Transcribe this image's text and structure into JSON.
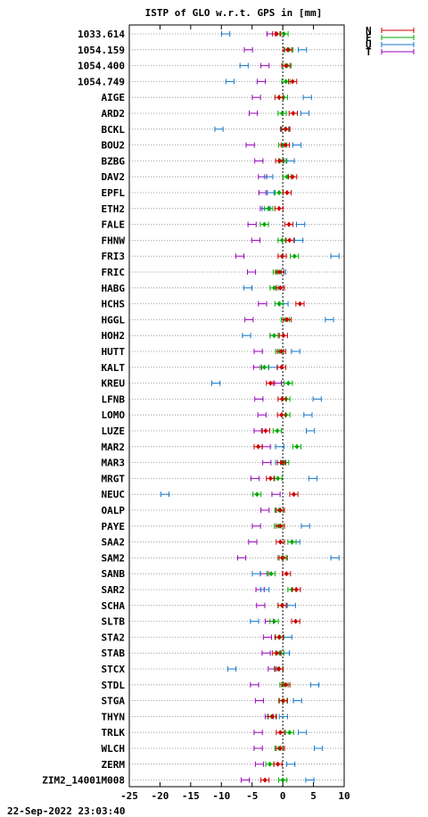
{
  "chart_data": {
    "type": "scatter",
    "title": "ISTP of GLO w.r.t. GPS in [mm]",
    "xlim": [
      -25,
      10
    ],
    "xticks": [
      "-25",
      "-20",
      "-15",
      "-10",
      "-5",
      "0",
      "5",
      "10"
    ],
    "grid": "horizontal-dotted",
    "zero_line": "dotted-vertical",
    "legend_placement": "top-right-outside",
    "colors": {
      "N": "#cc0000",
      "E": "#00aa00",
      "U": "#1177cc",
      "T": "#9900bb"
    },
    "series": [
      {
        "name": "N"
      },
      {
        "name": "E"
      },
      {
        "name": "U"
      },
      {
        "name": "T"
      }
    ],
    "stations": [
      {
        "label": "1033.614",
        "N": -1.0,
        "E": 0.2,
        "U": -9.3,
        "T": -1.9
      },
      {
        "label": "1054.159",
        "N": 0.8,
        "E": 1.0,
        "U": 3.2,
        "T": -5.6
      },
      {
        "label": "1054.400",
        "N": 0.5,
        "E": 0.7,
        "U": -6.3,
        "T": -2.9
      },
      {
        "label": "1054.749",
        "N": 1.6,
        "E": 0.5,
        "U": -8.6,
        "T": -3.5
      },
      {
        "label": "AIGE",
        "N": -0.6,
        "E": 0.1,
        "U": 4.0,
        "T": -4.3
      },
      {
        "label": "ARD2",
        "N": 1.7,
        "E": -0.1,
        "U": 3.6,
        "T": -4.8
      },
      {
        "label": "BCKL",
        "N": 0.5,
        "E": 0.4,
        "U": -10.4,
        "T": 0.3
      },
      {
        "label": "BOU2",
        "N": 0.4,
        "E": 0.0,
        "U": 2.3,
        "T": -5.3
      },
      {
        "label": "BZBG",
        "N": -0.5,
        "E": 0.0,
        "U": 1.2,
        "T": -3.9
      },
      {
        "label": "DAV2",
        "N": 1.6,
        "E": 0.7,
        "U": -2.3,
        "T": -3.3
      },
      {
        "label": "EPFL",
        "N": 0.7,
        "E": -0.6,
        "U": -2.1,
        "T": -3.2
      },
      {
        "label": "ETH2",
        "N": -0.6,
        "E": -2.3,
        "U": -2.7,
        "T": -3.0
      },
      {
        "label": "FALE",
        "N": 1.0,
        "E": -3.0,
        "U": 2.9,
        "T": -5.0
      },
      {
        "label": "FHNW",
        "N": 1.1,
        "E": -0.1,
        "U": 2.6,
        "T": -4.4
      },
      {
        "label": "FRI3",
        "N": -0.1,
        "E": 1.9,
        "U": 8.5,
        "T": -7.0
      },
      {
        "label": "FRIC",
        "N": -0.5,
        "E": -0.9,
        "U": -0.2,
        "T": -5.1
      },
      {
        "label": "HABG",
        "N": -0.4,
        "E": -1.4,
        "U": -5.7,
        "T": -0.4
      },
      {
        "label": "HCHS",
        "N": 2.8,
        "E": -0.6,
        "U": 0.2,
        "T": -3.3
      },
      {
        "label": "HGGL",
        "N": 0.7,
        "E": 0.4,
        "U": 7.6,
        "T": -5.5
      },
      {
        "label": "HOH2",
        "N": 0.1,
        "E": -1.4,
        "U": -5.9,
        "T": -1.4
      },
      {
        "label": "HUTT",
        "N": -0.2,
        "E": -0.5,
        "U": 2.1,
        "T": -4.0
      },
      {
        "label": "KALT",
        "N": -0.2,
        "E": -3.0,
        "U": -1.6,
        "T": -4.1
      },
      {
        "label": "KREU",
        "N": -2.0,
        "E": 0.9,
        "U": -10.9,
        "T": -0.9
      },
      {
        "label": "LFNB",
        "N": -0.1,
        "E": 0.5,
        "U": 5.6,
        "T": -3.9
      },
      {
        "label": "LOMO",
        "N": -0.2,
        "E": 0.5,
        "U": 4.1,
        "T": -3.4
      },
      {
        "label": "LUZE",
        "N": -2.8,
        "E": -0.9,
        "U": 4.5,
        "T": -4.0
      },
      {
        "label": "MAR2",
        "N": -4.0,
        "E": 2.3,
        "U": -0.5,
        "T": -2.7
      },
      {
        "label": "MAR3",
        "N": -0.2,
        "E": 0.3,
        "U": -0.5,
        "T": -2.6
      },
      {
        "label": "MRGT",
        "N": -2.0,
        "E": -0.8,
        "U": 4.9,
        "T": -4.5
      },
      {
        "label": "NEUC",
        "N": 1.8,
        "E": -4.2,
        "U": -19.2,
        "T": -1.1
      },
      {
        "label": "OALP",
        "N": -0.4,
        "E": -0.6,
        "U": -0.4,
        "T": -2.9
      },
      {
        "label": "PAYE",
        "N": -0.4,
        "E": -0.7,
        "U": 3.7,
        "T": -4.3
      },
      {
        "label": "SAA2",
        "N": -0.4,
        "E": 1.5,
        "U": 2.1,
        "T": -4.9
      },
      {
        "label": "SAM2",
        "N": -0.1,
        "E": 0.1,
        "U": 8.5,
        "T": -6.7
      },
      {
        "label": "SANB",
        "N": 0.6,
        "E": -1.9,
        "U": -4.3,
        "T": -3.0
      },
      {
        "label": "SAR2",
        "N": 2.2,
        "E": 1.5,
        "U": -2.9,
        "T": -3.7
      },
      {
        "label": "SCHA",
        "N": -0.1,
        "E": -0.1,
        "U": 1.4,
        "T": -3.6
      },
      {
        "label": "SLTB",
        "N": 2.1,
        "E": -1.4,
        "U": -4.6,
        "T": -2.2
      },
      {
        "label": "STA2",
        "N": -0.6,
        "E": -0.5,
        "U": 0.8,
        "T": -2.5
      },
      {
        "label": "STAB",
        "N": -1.0,
        "E": -0.5,
        "U": 0.4,
        "T": -2.7
      },
      {
        "label": "STCX",
        "N": -0.6,
        "E": -0.7,
        "U": -8.3,
        "T": -1.7
      },
      {
        "label": "STDL",
        "N": 0.5,
        "E": 0.2,
        "U": 5.2,
        "T": -4.6
      },
      {
        "label": "STGA",
        "N": 0.1,
        "E": 0.0,
        "U": 2.4,
        "T": -3.8
      },
      {
        "label": "THYN",
        "N": -1.7,
        "E": -1.8,
        "U": 0.1,
        "T": -2.2
      },
      {
        "label": "TRLK",
        "N": -0.4,
        "E": 1.1,
        "U": 3.2,
        "T": -4.0
      },
      {
        "label": "WLCH",
        "N": -0.4,
        "E": -0.6,
        "U": 5.8,
        "T": -4.0
      },
      {
        "label": "ZERM",
        "N": -0.8,
        "E": -2.1,
        "U": 1.3,
        "T": -3.8
      },
      {
        "label": "ZIM2_14001M008",
        "N": -2.9,
        "E": 0.0,
        "U": 4.4,
        "T": -6.1
      }
    ]
  },
  "timestamp": "22-Sep-2022 23:03:40"
}
